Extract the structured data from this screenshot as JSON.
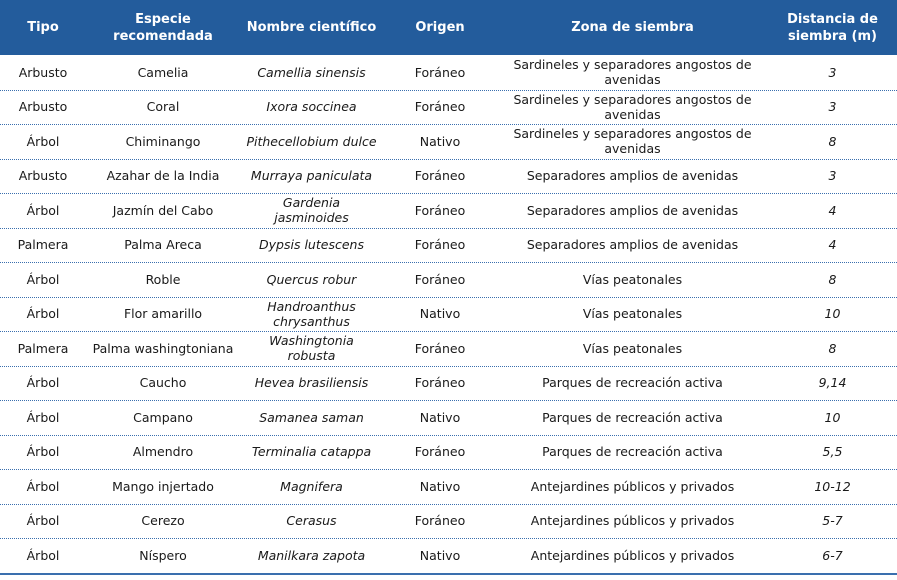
{
  "table": {
    "headers": [
      "Tipo",
      "Especie recomendada",
      "Nombre científico",
      "Origen",
      "Zona de siembra",
      "Distancia de siembra (m)"
    ],
    "rows": [
      [
        "Arbusto",
        "Camelia",
        "Camellia sinensis",
        "Foráneo",
        "Sardineles y separadores angostos de avenidas",
        "3"
      ],
      [
        "Arbusto",
        "Coral",
        "Ixora soccinea",
        "Foráneo",
        "Sardineles y separadores angostos de avenidas",
        "3"
      ],
      [
        "Árbol",
        "Chiminango",
        "Pithecellobium dulce",
        "Nativo",
        "Sardineles y separadores angostos de avenidas",
        "8"
      ],
      [
        "Arbusto",
        "Azahar de la India",
        "Murraya paniculata",
        "Foráneo",
        "Separadores amplios de avenidas",
        "3"
      ],
      [
        "Árbol",
        "Jazmín del Cabo",
        "Gardenia jasminoides",
        "Foráneo",
        "Separadores amplios de avenidas",
        "4"
      ],
      [
        "Palmera",
        "Palma Areca",
        "Dypsis lutescens",
        "Foráneo",
        "Separadores amplios de avenidas",
        "4"
      ],
      [
        "Árbol",
        "Roble",
        "Quercus robur",
        "Foráneo",
        "Vías peatonales",
        "8"
      ],
      [
        "Árbol",
        "Flor amarillo",
        "Handroanthus chrysanthus",
        "Nativo",
        "Vías peatonales",
        "10"
      ],
      [
        "Palmera",
        "Palma washingtoniana",
        "Washingtonia robusta",
        "Foráneo",
        "Vías peatonales",
        "8"
      ],
      [
        "Árbol",
        "Caucho",
        "Hevea brasiliensis",
        "Foráneo",
        "Parques de recreación activa",
        "9,14"
      ],
      [
        "Árbol",
        "Campano",
        "Samanea saman",
        "Nativo",
        "Parques de recreación activa",
        "10"
      ],
      [
        "Árbol",
        "Almendro",
        "Terminalia catappa",
        "Foráneo",
        "Parques de recreación activa",
        "5,5"
      ],
      [
        "Árbol",
        "Mango injertado",
        "Magnifera",
        "Nativo",
        "Antejardines públicos y privados",
        "10-12"
      ],
      [
        "Árbol",
        "Cerezo",
        "Cerasus",
        "Foráneo",
        "Antejardines públicos y privados",
        "5-7"
      ],
      [
        "Árbol",
        "Níspero",
        "Manilkara zapota",
        "Nativo",
        "Antejardines públicos y privados",
        "6-7"
      ]
    ]
  }
}
